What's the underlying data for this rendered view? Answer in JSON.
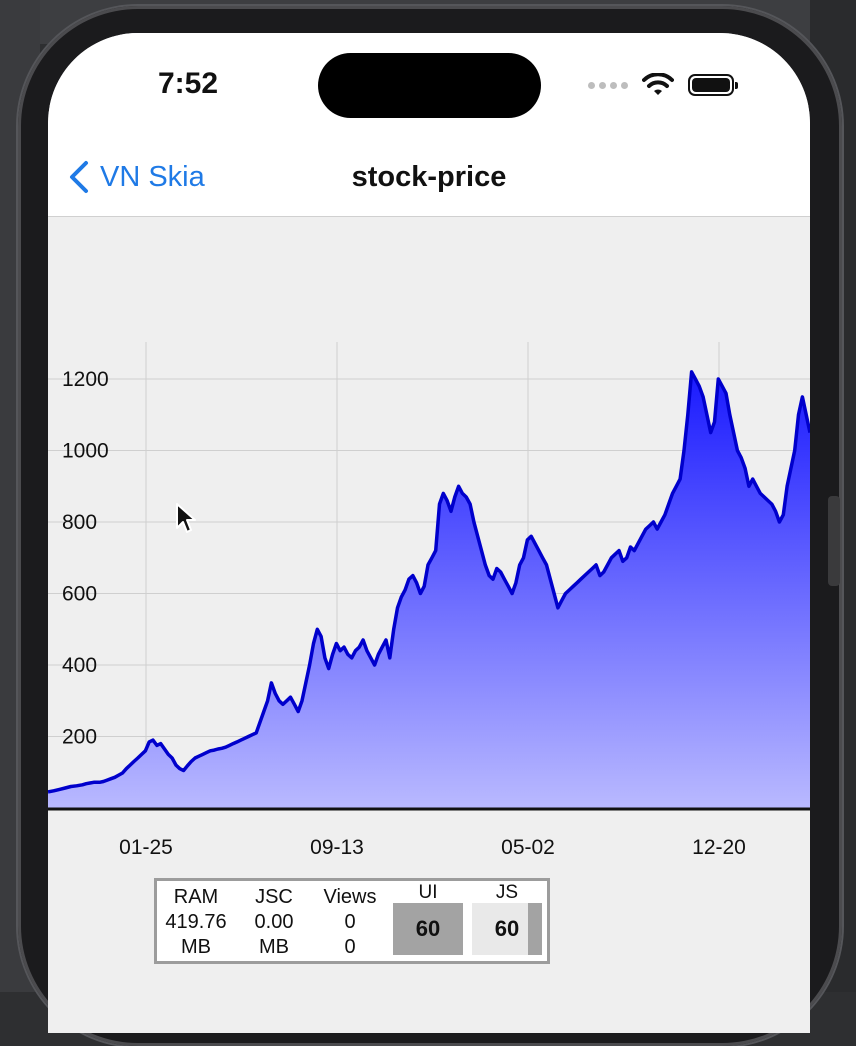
{
  "status_bar": {
    "time": "7:52"
  },
  "nav": {
    "back_label": "VN Skia",
    "title": "stock-price"
  },
  "chart_data": {
    "type": "area",
    "title": "",
    "xlabel": "",
    "ylabel": "",
    "ylim": [
      0,
      1300
    ],
    "y_ticks": [
      200,
      400,
      600,
      800,
      1000,
      1200
    ],
    "x_ticks": [
      "01-25",
      "09-13",
      "05-02",
      "12-20"
    ],
    "grid": true,
    "fill_gradient": [
      "#1a1aff",
      "#b9b9ff"
    ],
    "line_color": "#0000cc",
    "series": [
      {
        "x": [
          0,
          3,
          6,
          9,
          12,
          15,
          18,
          20,
          22,
          24,
          27,
          29,
          31,
          33,
          35,
          37,
          39,
          41,
          43,
          45,
          47,
          49,
          51,
          53,
          55,
          57,
          59,
          61,
          63,
          65,
          67,
          69,
          71,
          73,
          75,
          77,
          79,
          81,
          83,
          85,
          87,
          89,
          91,
          93,
          95,
          97,
          99,
          101,
          103,
          105,
          107,
          109,
          111,
          113,
          115,
          117,
          119,
          121,
          123,
          125,
          127,
          129,
          131,
          133,
          135,
          137,
          139,
          141,
          143,
          145,
          147,
          149,
          151,
          153,
          155,
          157,
          159,
          161,
          163,
          165,
          167,
          169,
          171,
          173,
          175,
          177,
          179,
          181,
          183,
          185,
          187,
          189,
          191,
          193,
          195,
          197,
          199,
          201,
          203,
          205,
          207,
          209,
          211,
          213,
          215,
          217,
          219,
          221,
          223,
          225,
          227,
          229,
          231,
          233,
          235,
          237,
          239,
          241,
          243,
          245,
          247,
          249,
          251,
          253,
          255,
          257,
          259,
          261,
          263,
          265,
          267,
          269,
          271,
          273,
          275,
          277,
          279,
          281,
          283,
          285,
          287,
          289,
          291,
          293,
          295,
          297,
          299,
          301,
          303,
          305,
          307,
          309,
          311,
          313,
          315,
          317,
          319,
          321,
          323,
          325,
          327,
          329,
          331,
          333,
          335,
          337,
          339,
          341,
          343,
          345,
          347,
          349,
          351,
          353,
          355,
          357,
          359,
          361,
          363,
          365,
          367,
          369,
          371,
          373,
          375,
          377,
          379,
          381,
          383,
          385,
          387,
          389,
          391,
          393,
          395,
          397,
          399
        ],
        "y": [
          45,
          48,
          52,
          56,
          60,
          62,
          65,
          68,
          70,
          72,
          72,
          74,
          78,
          82,
          86,
          92,
          98,
          110,
          120,
          130,
          140,
          150,
          160,
          185,
          190,
          175,
          180,
          165,
          150,
          140,
          120,
          110,
          105,
          118,
          130,
          140,
          145,
          150,
          155,
          160,
          162,
          165,
          167,
          170,
          175,
          180,
          185,
          190,
          195,
          200,
          205,
          210,
          240,
          270,
          300,
          350,
          320,
          300,
          290,
          300,
          310,
          290,
          270,
          300,
          350,
          400,
          460,
          500,
          480,
          420,
          390,
          430,
          460,
          440,
          450,
          430,
          420,
          440,
          450,
          470,
          440,
          420,
          400,
          430,
          450,
          470,
          420,
          500,
          560,
          590,
          610,
          640,
          650,
          630,
          600,
          620,
          680,
          700,
          720,
          850,
          880,
          860,
          830,
          870,
          900,
          880,
          870,
          850,
          800,
          760,
          720,
          680,
          650,
          640,
          670,
          660,
          640,
          620,
          600,
          630,
          680,
          700,
          750,
          760,
          740,
          720,
          700,
          680,
          640,
          600,
          560,
          580,
          600,
          610,
          620,
          630,
          640,
          650,
          660,
          670,
          680,
          650,
          660,
          680,
          700,
          710,
          720,
          690,
          700,
          730,
          720,
          740,
          760,
          780,
          790,
          800,
          780,
          800,
          820,
          850,
          880,
          900,
          920,
          1000,
          1100,
          1220,
          1200,
          1180,
          1150,
          1100,
          1050,
          1080,
          1200,
          1180,
          1160,
          1100,
          1050,
          1000,
          980,
          950,
          900,
          920,
          900,
          880,
          870,
          860,
          850,
          830,
          800,
          820,
          900,
          950,
          1000,
          1100,
          1150,
          1100,
          1050
        ]
      }
    ]
  },
  "perf_monitor": {
    "ram_label": "RAM",
    "ram_value": "419.76",
    "ram_unit": "MB",
    "jsc_label": "JSC",
    "jsc_value": "0.00",
    "jsc_unit": "MB",
    "views_label": "Views",
    "views_value": "0",
    "views_value2": "0",
    "ui_label": "UI",
    "ui_fps": "60",
    "js_label": "JS",
    "js_fps": "60"
  }
}
